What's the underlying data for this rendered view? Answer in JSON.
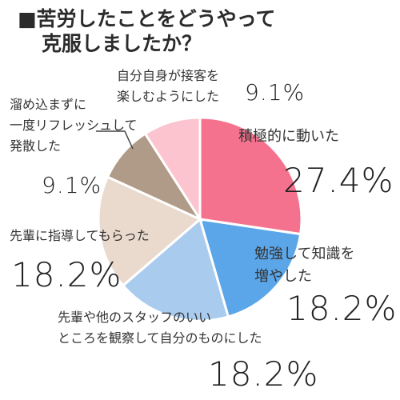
{
  "title_line1": "苦労したことをどうやって",
  "title_line2": "克服しましたか？",
  "title_marker": "■",
  "chart_data": {
    "type": "pie",
    "title": "苦労したことをどうやって克服しましたか？",
    "unit": "%",
    "start_angle_deg": 0,
    "direction": "clockwise",
    "slices": [
      {
        "label": "積極的に動いた",
        "value": 27.4,
        "label_value": "27.4%",
        "color": "#f5728f"
      },
      {
        "label": "勉強して知識を増やした",
        "value": 18.2,
        "label_value": "18.2%",
        "color": "#5aa6e8"
      },
      {
        "label": "先輩や他のスタッフのいいところを観察して自分のものにした",
        "value": 18.2,
        "label_value": "18.2%",
        "color": "#a9cbee"
      },
      {
        "label": "先輩に指導してもらった",
        "value": 18.2,
        "label_value": "18.2%",
        "color": "#ead9cd"
      },
      {
        "label": "溜め込まずに一度リフレッシュして発散した",
        "value": 9.1,
        "label_value": "9.1%",
        "color": "#b09a88"
      },
      {
        "label": "自分自身が接客を楽しむようにした",
        "value": 9.1,
        "label_value": "9.1%",
        "color": "#fbc4cf"
      }
    ]
  },
  "labels": {
    "active": {
      "line1": "積極的に動いた",
      "pct": "27.4%"
    },
    "study": {
      "line1": "勉強して知識を",
      "line2": "増やした",
      "pct": "18.2%"
    },
    "observe": {
      "line1": "先輩や他のスタッフのいい",
      "line2": "ところを観察して自分のものにした",
      "pct": "18.2%"
    },
    "mentor": {
      "line1": "先輩に指導してもらった",
      "pct": "18.2%"
    },
    "refresh": {
      "line1": "溜め込まずに",
      "line2": "一度リフレッシュして",
      "line3": "発散した",
      "pct": "9.1%"
    },
    "enjoy": {
      "line1": "自分自身が接客を",
      "line2": "楽しむようにした",
      "pct": "9.1%"
    }
  }
}
